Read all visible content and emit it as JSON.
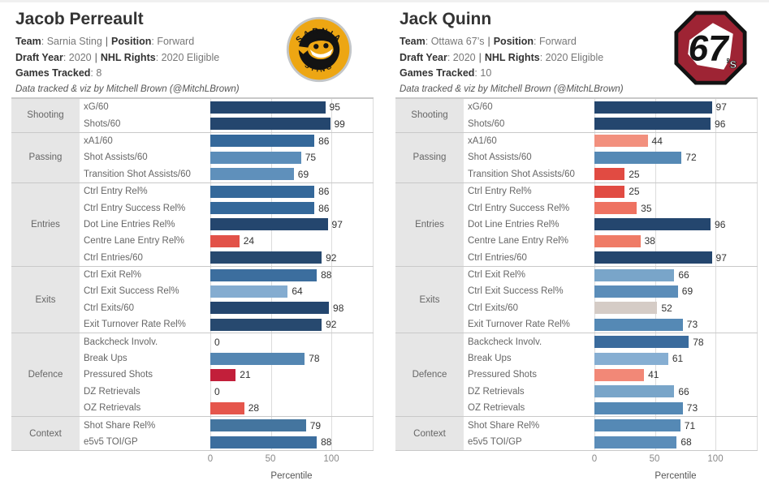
{
  "punct": {
    "colon": ": ",
    "pipe": "|"
  },
  "meta_labels": {
    "team": "Team",
    "position": "Position",
    "draft_year": "Draft Year",
    "nhl_rights": "NHL Rights",
    "games_tracked": "Games Tracked"
  },
  "players": [
    {
      "name": "Jacob Perreault",
      "team": "Sarnia Sting",
      "position": "Forward",
      "draft_year": "2020",
      "nhl_rights": "2020 Eligible",
      "games_tracked": "8",
      "credit": "Data tracked & viz by Mitchell Brown (@MitchLBrown)",
      "logo": "sarnia-sting-logo"
    },
    {
      "name": "Jack Quinn",
      "team": "Ottawa 67’s",
      "position": "Forward",
      "draft_year": "2020",
      "nhl_rights": "2020 Eligible",
      "games_tracked": "10",
      "credit": "Data tracked & viz by Mitchell Brown (@MitchLBrown)",
      "logo": "ottawa-67s-logo"
    }
  ],
  "logo_text": {
    "sarnia_top": "SARNIA",
    "sarnia_bottom": "STING",
    "ottawa": "67",
    "ottawa_s": "’s"
  },
  "axis": {
    "ticks": [
      "0",
      "50",
      "100"
    ],
    "tick_values": [
      0,
      50,
      100
    ],
    "label": "Percentile"
  },
  "chart_data": [
    {
      "type": "bar",
      "orientation": "horizontal",
      "title": "Jacob Perreault",
      "xlabel": "Percentile",
      "xlim": [
        0,
        100
      ],
      "xticks": [
        0,
        50,
        100
      ],
      "grid": true,
      "groups": [
        {
          "category": "Shooting",
          "rows": [
            {
              "label": "xG/60",
              "value": 95,
              "color": "#24466e"
            },
            {
              "label": "Shots/60",
              "value": 99,
              "color": "#24466e"
            }
          ]
        },
        {
          "category": "Passing",
          "rows": [
            {
              "label": "xA1/60",
              "value": 86,
              "color": "#34689a"
            },
            {
              "label": "Shot Assists/60",
              "value": 75,
              "color": "#5b8db9"
            },
            {
              "label": "Transition Shot Assists/60",
              "value": 69,
              "color": "#5f90bb"
            }
          ]
        },
        {
          "category": "Entries",
          "rows": [
            {
              "label": "Ctrl Entry Rel%",
              "value": 86,
              "color": "#34689a"
            },
            {
              "label": "Ctrl Entry Success Rel%",
              "value": 86,
              "color": "#34689a"
            },
            {
              "label": "Dot Line Entries Rel%",
              "value": 97,
              "color": "#24466e"
            },
            {
              "label": "Centre Lane Entry Rel%",
              "value": 24,
              "color": "#e25249"
            },
            {
              "label": "Ctrl Entries/60",
              "value": 92,
              "color": "#27496f"
            }
          ]
        },
        {
          "category": "Exits",
          "rows": [
            {
              "label": "Ctrl Exit Rel%",
              "value": 88,
              "color": "#3c6e9e"
            },
            {
              "label": "Ctrl Exit Success Rel%",
              "value": 64,
              "color": "#84acd0"
            },
            {
              "label": "Ctrl Exits/60",
              "value": 98,
              "color": "#24466e"
            },
            {
              "label": "Exit Turnover Rate Rel%",
              "value": 92,
              "color": "#27496f"
            }
          ]
        },
        {
          "category": "Defence",
          "rows": [
            {
              "label": "Backcheck Involv.",
              "value": 0,
              "color": null
            },
            {
              "label": "Break Ups",
              "value": 78,
              "color": "#5486b2"
            },
            {
              "label": "Pressured Shots",
              "value": 21,
              "color": "#c21f3a"
            },
            {
              "label": "DZ Retrievals",
              "value": 0,
              "color": null
            },
            {
              "label": "OZ Retrievals",
              "value": 28,
              "color": "#e5564c"
            }
          ]
        },
        {
          "category": "Context",
          "rows": [
            {
              "label": "Shot Share Rel%",
              "value": 79,
              "color": "#44759f"
            },
            {
              "label": "e5v5 TOI/GP",
              "value": 88,
              "color": "#3c6e9e"
            }
          ]
        }
      ]
    },
    {
      "type": "bar",
      "orientation": "horizontal",
      "title": "Jack Quinn",
      "xlabel": "Percentile",
      "xlim": [
        0,
        100
      ],
      "xticks": [
        0,
        50,
        100
      ],
      "grid": true,
      "groups": [
        {
          "category": "Shooting",
          "rows": [
            {
              "label": "xG/60",
              "value": 97,
              "color": "#24466e"
            },
            {
              "label": "Shots/60",
              "value": 96,
              "color": "#24466e"
            }
          ]
        },
        {
          "category": "Passing",
          "rows": [
            {
              "label": "xA1/60",
              "value": 44,
              "color": "#f2907e"
            },
            {
              "label": "Shot Assists/60",
              "value": 72,
              "color": "#5589b5"
            },
            {
              "label": "Transition Shot Assists/60",
              "value": 25,
              "color": "#e14b42"
            }
          ]
        },
        {
          "category": "Entries",
          "rows": [
            {
              "label": "Ctrl Entry Rel%",
              "value": 25,
              "color": "#e14b42"
            },
            {
              "label": "Ctrl Entry Success Rel%",
              "value": 35,
              "color": "#ee7261"
            },
            {
              "label": "Dot Line Entries Rel%",
              "value": 96,
              "color": "#24466e"
            },
            {
              "label": "Centre Lane Entry Rel%",
              "value": 38,
              "color": "#ef7b66"
            },
            {
              "label": "Ctrl Entries/60",
              "value": 97,
              "color": "#24466e"
            }
          ]
        },
        {
          "category": "Exits",
          "rows": [
            {
              "label": "Ctrl Exit Rel%",
              "value": 66,
              "color": "#79a5c9"
            },
            {
              "label": "Ctrl Exit Success Rel%",
              "value": 69,
              "color": "#5b8db9"
            },
            {
              "label": "Ctrl Exits/60",
              "value": 52,
              "color": "#d5ccc6"
            },
            {
              "label": "Exit Turnover Rate Rel%",
              "value": 73,
              "color": "#5589b5"
            }
          ]
        },
        {
          "category": "Defence",
          "rows": [
            {
              "label": "Backcheck Involv.",
              "value": 78,
              "color": "#3a6b9d"
            },
            {
              "label": "Break Ups",
              "value": 61,
              "color": "#86aed2"
            },
            {
              "label": "Pressured Shots",
              "value": 41,
              "color": "#f28877"
            },
            {
              "label": "DZ Retrievals",
              "value": 66,
              "color": "#79a5c9"
            },
            {
              "label": "OZ Retrievals",
              "value": 73,
              "color": "#5589b5"
            }
          ]
        },
        {
          "category": "Context",
          "rows": [
            {
              "label": "Shot Share Rel%",
              "value": 71,
              "color": "#5589b5"
            },
            {
              "label": "e5v5 TOI/GP",
              "value": 68,
              "color": "#5b8db9"
            }
          ]
        }
      ]
    }
  ]
}
